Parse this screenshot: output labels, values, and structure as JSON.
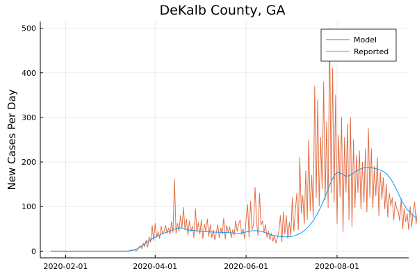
{
  "chart_data": {
    "type": "line",
    "title": "DeKalb County, GA",
    "xlabel": "",
    "ylabel": "New Cases Per Day",
    "x_start": "2020-01-22",
    "x_end": "2020-09-13",
    "xlim": [
      "2020-01-15",
      "2020-09-18"
    ],
    "ylim": [
      -15,
      515
    ],
    "x_ticks": [
      "2020-02-01",
      "2020-04-01",
      "2020-06-01",
      "2020-08-01"
    ],
    "y_ticks": [
      0,
      100,
      200,
      300,
      400,
      500
    ],
    "grid": true,
    "legend_position": "top-right",
    "colors": {
      "Model": "#009af9",
      "Reported": "#e26f46"
    },
    "series": [
      {
        "name": "Model",
        "values": [
          0,
          0,
          0,
          0,
          0,
          0,
          0,
          0,
          0,
          0,
          0,
          0,
          0,
          0,
          0,
          0,
          0,
          0,
          0,
          0,
          0,
          0,
          0,
          0,
          0,
          0,
          0,
          0,
          0,
          0,
          0,
          0,
          0,
          0,
          0,
          0,
          0,
          0,
          0,
          0,
          0,
          0,
          0,
          0,
          0,
          0,
          0,
          0,
          0,
          0,
          0,
          0,
          0.4,
          0.7,
          1.2,
          1.9,
          2.9,
          4.1,
          5.6,
          7.4,
          9.4,
          11.6,
          13.9,
          16.3,
          18.7,
          21.1,
          23.3,
          25.5,
          27.5,
          29.4,
          31.5,
          33.3,
          35.1,
          36.4,
          38.1,
          39.1,
          40.5,
          41.8,
          42.7,
          44.1,
          45.3,
          46.9,
          48.1,
          49.1,
          49.9,
          50.8,
          51.7,
          52.4,
          51.9,
          50.5,
          49.3,
          48.1,
          47.3,
          47,
          46.8,
          46.5,
          46.3,
          46.1,
          45.7,
          45.3,
          44.8,
          44.4,
          44.1,
          43.8,
          43.6,
          43.5,
          43.3,
          43.1,
          43,
          42.8,
          42.7,
          42.6,
          42.5,
          42.4,
          42.3,
          42.1,
          42,
          41.8,
          41.7,
          41.5,
          41.3,
          41.1,
          40.9,
          40.7,
          40.5,
          40.3,
          40.1,
          40.2,
          40.7,
          41.5,
          42.3,
          43.1,
          43.9,
          44.6,
          45.2,
          45.7,
          45.9,
          46,
          45.8,
          45.5,
          45,
          44.3,
          43.4,
          42.4,
          41.3,
          40.1,
          39,
          37.9,
          36.9,
          36,
          35.2,
          34.5,
          33.9,
          33.4,
          33,
          32.6,
          32.4,
          32.2,
          32.1,
          32.2,
          32.4,
          32.8,
          33.4,
          34.2,
          35.2,
          36.4,
          37.8,
          39.5,
          41.4,
          43.6,
          46.1,
          48.9,
          52.1,
          55.6,
          59.5,
          63.8,
          68.5,
          73.6,
          79.2,
          85.2,
          91.7,
          98.6,
          106,
          113.8,
          122,
          130.6,
          139.2,
          147.8,
          155.8,
          163,
          168.9,
          173.1,
          175.5,
          176.2,
          175.5,
          173.8,
          171.5,
          169.5,
          168.4,
          168.5,
          169.4,
          170.9,
          172.9,
          175.2,
          177.5,
          179.7,
          181.5,
          183.3,
          184.8,
          186,
          186.8,
          187.4,
          187.6,
          187.6,
          187.3,
          186.9,
          186.4,
          185.7,
          184.9,
          184,
          182.9,
          181.7,
          180.2,
          178.5,
          176.4,
          173.8,
          170.5,
          166.5,
          161.8,
          156.3,
          150.3,
          143.8,
          136.9,
          129.8,
          122.8,
          116,
          109.6,
          103.8,
          98.6,
          94,
          89.9,
          86.2,
          82.8,
          79.8,
          77.2,
          74.9,
          72.9,
          71.2,
          69.7,
          68.4,
          67.3,
          66.4,
          65.7,
          65.1,
          64.6,
          64.2,
          63.9,
          63.8
        ]
      },
      {
        "name": "Reported",
        "values": [
          0,
          0,
          0,
          0,
          0,
          0,
          0,
          0,
          0,
          0,
          0,
          0,
          0,
          0,
          0,
          0,
          0,
          0,
          0,
          0,
          0,
          0,
          0,
          0,
          0,
          0,
          0,
          0,
          0,
          0,
          0,
          0,
          0,
          0,
          0,
          0,
          0,
          0,
          0,
          0,
          0,
          0,
          0,
          0,
          0,
          0,
          0,
          0,
          0,
          0,
          0,
          0,
          1,
          0,
          3,
          1,
          4,
          0,
          2,
          8,
          12,
          6,
          18,
          10,
          25,
          9,
          32,
          20,
          58,
          24,
          62,
          31,
          43,
          28,
          56,
          39,
          45,
          58,
          40,
          52,
          38,
          66,
          42,
          161,
          40,
          62,
          45,
          80,
          52,
          98,
          48,
          72,
          36,
          68,
          44,
          56,
          30,
          95,
          42,
          64,
          38,
          70,
          28,
          61,
          45,
          72,
          33,
          59,
          30,
          48,
          25,
          41,
          60,
          30,
          52,
          38,
          74,
          27,
          58,
          42,
          55,
          30,
          48,
          36,
          68,
          45,
          60,
          70,
          38,
          50,
          28,
          72,
          105,
          32,
          112,
          48,
          60,
          143,
          66,
          35,
          130,
          58,
          68,
          42,
          60,
          30,
          45,
          25,
          40,
          22,
          35,
          18,
          30,
          45,
          80,
          21,
          88,
          38,
          80,
          28,
          65,
          35,
          120,
          45,
          90,
          130,
          48,
          210,
          85,
          125,
          60,
          180,
          71,
          250,
          90,
          170,
          75,
          370,
          120,
          340,
          102,
          255,
          140,
          380,
          115,
          290,
          97,
          500,
          130,
          410,
          110,
          350,
          62,
          260,
          121,
          300,
          44,
          255,
          132,
          285,
          70,
          300,
          55,
          250,
          98,
          215,
          131,
          225,
          95,
          200,
          110,
          230,
          88,
          275,
          120,
          230,
          96,
          190,
          124,
          210,
          80,
          178,
          117,
          165,
          95,
          150,
          76,
          130,
          102,
          120,
          70,
          112,
          95,
          90,
          68,
          118,
          50,
          96,
          66,
          84,
          48,
          100,
          55,
          90,
          110,
          60,
          94,
          50,
          118,
          80,
          72,
          90,
          98,
          50,
          82,
          68,
          100,
          74,
          12,
          66,
          90,
          74,
          95,
          48,
          70,
          85,
          62,
          98,
          54,
          38
        ]
      }
    ]
  }
}
